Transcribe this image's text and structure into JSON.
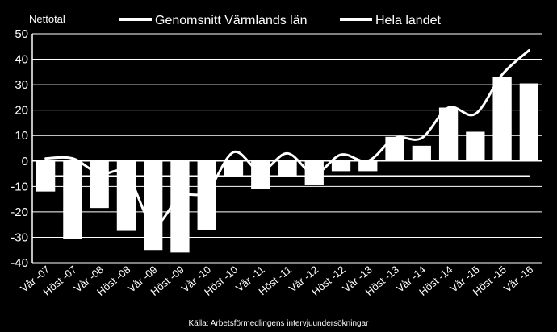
{
  "chart_data": {
    "type": "bar",
    "ylabel": "Nettotal",
    "ylim": [
      -40,
      50
    ],
    "yticks": [
      -40,
      -30,
      -20,
      -10,
      0,
      10,
      20,
      30,
      40,
      50
    ],
    "grid": true,
    "legend_position": "top",
    "categories": [
      "Vår -07",
      "Höst -07",
      "Vår -08",
      "Höst -08",
      "Vår -09",
      "Höst -09",
      "Vår -10",
      "Höst -10",
      "Vår -11",
      "Höst -11",
      "Vår -12",
      "Höst -12",
      "Vår -13",
      "Höst -13",
      "Vår -14",
      "Höst -14",
      "Vår -15",
      "Höst -15",
      "Vår -16"
    ],
    "series": [
      {
        "name": "Genomsnitt Värmlands län",
        "type": "bar",
        "color": "#ffffff",
        "values": [
          -12,
          -30.5,
          -18.5,
          -27.5,
          -35,
          -36,
          -27,
          -6,
          -11,
          -6,
          -9.5,
          -4,
          -4,
          9.5,
          6,
          21,
          11.5,
          33,
          30.5
        ]
      },
      {
        "name": "Hela landet",
        "type": "line",
        "color": "#ffffff",
        "values": [
          1,
          1,
          -5,
          -5,
          -25,
          -14,
          -12,
          3.5,
          -4,
          3,
          -5,
          2.5,
          0,
          9,
          9,
          21,
          18.5,
          34,
          43.5
        ]
      },
      {
        "name": "",
        "type": "line",
        "color": "#ffffff",
        "values": [
          -6,
          -6,
          -6,
          -6,
          -6,
          -6,
          -6,
          -6,
          -6,
          -6,
          -6,
          -6,
          -6,
          -6,
          -6,
          -6,
          -6,
          -6,
          -6
        ]
      }
    ],
    "source": "Källa: Arbetsförmedlingens intervjuundersökningar"
  }
}
